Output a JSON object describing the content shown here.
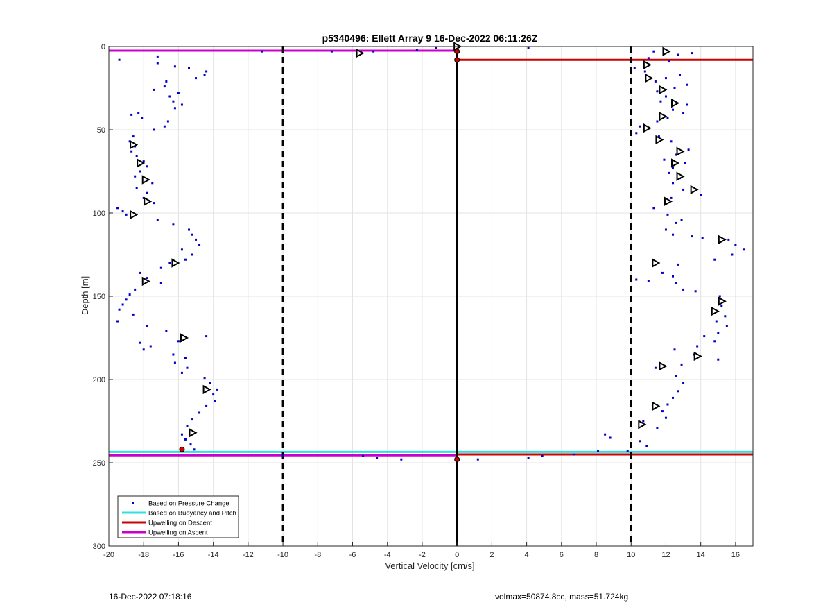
{
  "footer": {
    "timestamp": "16-Dec-2022 07:18:16",
    "info": "volmax=50874.8cc, mass=51.724kg"
  },
  "chart_data": {
    "type": "scatter",
    "title": "p5340496: Ellett Array 9 16-Dec-2022 06:11:26Z",
    "xlabel": "Vertical Velocity [cm/s]",
    "ylabel": "Depth [m]",
    "xlim": [
      -20,
      17
    ],
    "ylim": [
      0,
      300
    ],
    "y_reversed": true,
    "grid": true,
    "legend_position": "bottom-left",
    "xticks": [
      -20,
      -18,
      -16,
      -14,
      -12,
      -10,
      -8,
      -6,
      -4,
      -2,
      0,
      2,
      4,
      6,
      8,
      10,
      12,
      14,
      16
    ],
    "yticks": [
      0,
      50,
      100,
      150,
      200,
      250,
      300
    ],
    "colors": {
      "pressure": "#0000cc",
      "buoyancy": "#33e0e0",
      "descent": "#cc0000",
      "ascent": "#cc00cc",
      "reference": "#000000"
    },
    "legend": [
      {
        "label": "Based on Pressure Change",
        "style": "dot",
        "color": "#0000cc"
      },
      {
        "label": "Based on Buoyancy and Pitch",
        "style": "line",
        "color": "#33e0e0"
      },
      {
        "label": "Upwelling on Descent",
        "style": "line",
        "color": "#cc0000"
      },
      {
        "label": "Upwelling on Ascent",
        "style": "line",
        "color": "#cc00cc"
      }
    ],
    "reference_lines": {
      "dashed_x": [
        -10,
        10
      ],
      "solid_x": 0
    },
    "horizontal_lines": [
      {
        "series": "Upwelling on Ascent",
        "color": "#cc00cc",
        "y": 2.5,
        "x_from": -20,
        "x_to": 0
      },
      {
        "series": "Upwelling on Descent",
        "color": "#cc0000",
        "y": 8,
        "x_from": 0,
        "x_to": 17
      },
      {
        "series": "Based on Buoyancy and Pitch",
        "color": "#33e0e0",
        "y": 243.5,
        "x_from": -20,
        "x_to": 17
      },
      {
        "series": "Upwelling on Ascent",
        "color": "#cc00cc",
        "y": 245.5,
        "x_from": -20,
        "x_to": 0
      },
      {
        "series": "Upwelling on Descent",
        "color": "#cc0000",
        "y": 245,
        "x_from": 0,
        "x_to": 17
      }
    ],
    "pressure_points": [
      [
        -19.4,
        8
      ],
      [
        -17.2,
        6
      ],
      [
        -17.2,
        10
      ],
      [
        -16.2,
        12
      ],
      [
        -15.4,
        13
      ],
      [
        -14.4,
        15
      ],
      [
        -14.5,
        17
      ],
      [
        -15.0,
        19
      ],
      [
        -16.7,
        21
      ],
      [
        -16.8,
        24
      ],
      [
        -17.4,
        26
      ],
      [
        -16.0,
        28
      ],
      [
        -16.5,
        30
      ],
      [
        -16.3,
        33
      ],
      [
        -15.8,
        35
      ],
      [
        -16.2,
        37
      ],
      [
        -18.3,
        40
      ],
      [
        -18.7,
        41
      ],
      [
        -18.1,
        43
      ],
      [
        -16.6,
        45
      ],
      [
        -16.8,
        48
      ],
      [
        -17.4,
        50
      ],
      [
        -18.6,
        54
      ],
      [
        -18.8,
        57
      ],
      [
        -18.5,
        60
      ],
      [
        -18.7,
        63
      ],
      [
        -18.4,
        66
      ],
      [
        -18.0,
        69
      ],
      [
        -17.8,
        72
      ],
      [
        -18.2,
        75
      ],
      [
        -18.5,
        78
      ],
      [
        -17.5,
        82
      ],
      [
        -18.4,
        85
      ],
      [
        -17.8,
        88
      ],
      [
        -18.0,
        91
      ],
      [
        -17.4,
        94
      ],
      [
        -19.5,
        97
      ],
      [
        -19.2,
        99
      ],
      [
        -19.0,
        101
      ],
      [
        -17.2,
        104
      ],
      [
        -16.3,
        107
      ],
      [
        -15.4,
        110
      ],
      [
        -15.2,
        113
      ],
      [
        -15.0,
        116
      ],
      [
        -14.8,
        119
      ],
      [
        -15.8,
        122
      ],
      [
        -15.2,
        125
      ],
      [
        -15.6,
        128
      ],
      [
        -16.5,
        130
      ],
      [
        -17.0,
        133
      ],
      [
        -18.2,
        136
      ],
      [
        -17.8,
        139
      ],
      [
        -17.0,
        142
      ],
      [
        -18.5,
        146
      ],
      [
        -18.8,
        149
      ],
      [
        -19.0,
        152
      ],
      [
        -19.2,
        155
      ],
      [
        -19.4,
        158
      ],
      [
        -18.6,
        161
      ],
      [
        -19.5,
        165
      ],
      [
        -17.8,
        168
      ],
      [
        -16.7,
        171
      ],
      [
        -15.8,
        174
      ],
      [
        -14.4,
        174
      ],
      [
        -16.0,
        177
      ],
      [
        -18.2,
        178
      ],
      [
        -17.6,
        180
      ],
      [
        -18.0,
        182
      ],
      [
        -16.3,
        185
      ],
      [
        -15.6,
        187
      ],
      [
        -16.2,
        190
      ],
      [
        -15.5,
        193
      ],
      [
        -15.8,
        196
      ],
      [
        -14.5,
        199
      ],
      [
        -14.2,
        202
      ],
      [
        -13.8,
        206
      ],
      [
        -14.0,
        209
      ],
      [
        -13.9,
        213
      ],
      [
        -14.4,
        216
      ],
      [
        -14.8,
        220
      ],
      [
        -15.2,
        224
      ],
      [
        -15.5,
        228
      ],
      [
        -15.8,
        233
      ],
      [
        -15.6,
        236
      ],
      [
        -15.3,
        239
      ],
      [
        -15.1,
        242
      ],
      [
        -11.2,
        3
      ],
      [
        -7.2,
        3
      ],
      [
        -4.8,
        3
      ],
      [
        -2.3,
        2
      ],
      [
        -1.2,
        1
      ],
      [
        0.0,
        1
      ],
      [
        4.1,
        1
      ],
      [
        11.3,
        3
      ],
      [
        13.5,
        4
      ],
      [
        12.7,
        5
      ],
      [
        11.0,
        7
      ],
      [
        12.2,
        9
      ],
      [
        10.2,
        13
      ],
      [
        10.8,
        15
      ],
      [
        12.8,
        17
      ],
      [
        12.0,
        19
      ],
      [
        11.4,
        21
      ],
      [
        13.2,
        23
      ],
      [
        12.5,
        25
      ],
      [
        11.5,
        27
      ],
      [
        12.0,
        30
      ],
      [
        11.7,
        33
      ],
      [
        13.2,
        35
      ],
      [
        12.4,
        38
      ],
      [
        13.0,
        40
      ],
      [
        12.1,
        43
      ],
      [
        11.5,
        45
      ],
      [
        10.5,
        48
      ],
      [
        10.3,
        52
      ],
      [
        11.6,
        54
      ],
      [
        12.3,
        57
      ],
      [
        13.3,
        62
      ],
      [
        12.6,
        65
      ],
      [
        11.9,
        68
      ],
      [
        13.1,
        70
      ],
      [
        12.4,
        73
      ],
      [
        12.2,
        76
      ],
      [
        12.8,
        79
      ],
      [
        12.4,
        82
      ],
      [
        13.0,
        86
      ],
      [
        14.0,
        89
      ],
      [
        12.3,
        91
      ],
      [
        11.3,
        97
      ],
      [
        12.1,
        101
      ],
      [
        12.9,
        104
      ],
      [
        12.6,
        106
      ],
      [
        12.0,
        110
      ],
      [
        12.4,
        113
      ],
      [
        13.5,
        114
      ],
      [
        14.1,
        115
      ],
      [
        15.6,
        116
      ],
      [
        16.0,
        119
      ],
      [
        16.5,
        122
      ],
      [
        15.8,
        125
      ],
      [
        14.8,
        128
      ],
      [
        12.7,
        131
      ],
      [
        11.8,
        136
      ],
      [
        12.4,
        138
      ],
      [
        10.3,
        140
      ],
      [
        11.0,
        141
      ],
      [
        12.6,
        142
      ],
      [
        13.0,
        146
      ],
      [
        13.7,
        147
      ],
      [
        15.1,
        150
      ],
      [
        15.2,
        156
      ],
      [
        15.4,
        162
      ],
      [
        14.9,
        165
      ],
      [
        15.5,
        168
      ],
      [
        15.0,
        172
      ],
      [
        14.2,
        174
      ],
      [
        14.8,
        177
      ],
      [
        13.8,
        180
      ],
      [
        12.5,
        182
      ],
      [
        13.6,
        185
      ],
      [
        15.0,
        188
      ],
      [
        12.9,
        191
      ],
      [
        11.4,
        193
      ],
      [
        12.6,
        198
      ],
      [
        13.0,
        202
      ],
      [
        12.7,
        207
      ],
      [
        12.4,
        211
      ],
      [
        12.1,
        215
      ],
      [
        11.8,
        219
      ],
      [
        12.0,
        223
      ],
      [
        10.7,
        225
      ],
      [
        11.5,
        229
      ],
      [
        8.5,
        233
      ],
      [
        8.8,
        235
      ],
      [
        10.5,
        237
      ],
      [
        10.9,
        240
      ],
      [
        8.1,
        243
      ],
      [
        9.8,
        243
      ],
      [
        -10.0,
        246
      ],
      [
        -5.4,
        246
      ],
      [
        -4.6,
        247
      ],
      [
        -3.2,
        248
      ],
      [
        1.2,
        248
      ],
      [
        4.1,
        247
      ],
      [
        4.9,
        246
      ],
      [
        6.7,
        245
      ]
    ],
    "triangle_markers": [
      [
        0.0,
        0
      ],
      [
        -5.6,
        4
      ],
      [
        12.0,
        3
      ],
      [
        10.9,
        11
      ],
      [
        11.0,
        19
      ],
      [
        11.8,
        26
      ],
      [
        12.5,
        34
      ],
      [
        11.8,
        42
      ],
      [
        10.9,
        49
      ],
      [
        11.6,
        56
      ],
      [
        12.8,
        63
      ],
      [
        12.5,
        70
      ],
      [
        12.8,
        78
      ],
      [
        13.6,
        86
      ],
      [
        12.1,
        93
      ],
      [
        15.2,
        116
      ],
      [
        11.4,
        130
      ],
      [
        15.2,
        153
      ],
      [
        14.8,
        159
      ],
      [
        13.8,
        186
      ],
      [
        11.8,
        192
      ],
      [
        11.4,
        216
      ],
      [
        10.6,
        227
      ],
      [
        -18.6,
        59
      ],
      [
        -18.2,
        70
      ],
      [
        -17.9,
        80
      ],
      [
        -17.8,
        93
      ],
      [
        -18.6,
        101
      ],
      [
        -16.2,
        130
      ],
      [
        -17.9,
        141
      ],
      [
        -15.7,
        175
      ],
      [
        -14.4,
        206
      ],
      [
        -15.2,
        232
      ]
    ],
    "end_markers": [
      [
        0.0,
        3
      ],
      [
        0.0,
        8
      ],
      [
        -15.8,
        242
      ],
      [
        0.0,
        248
      ]
    ]
  }
}
